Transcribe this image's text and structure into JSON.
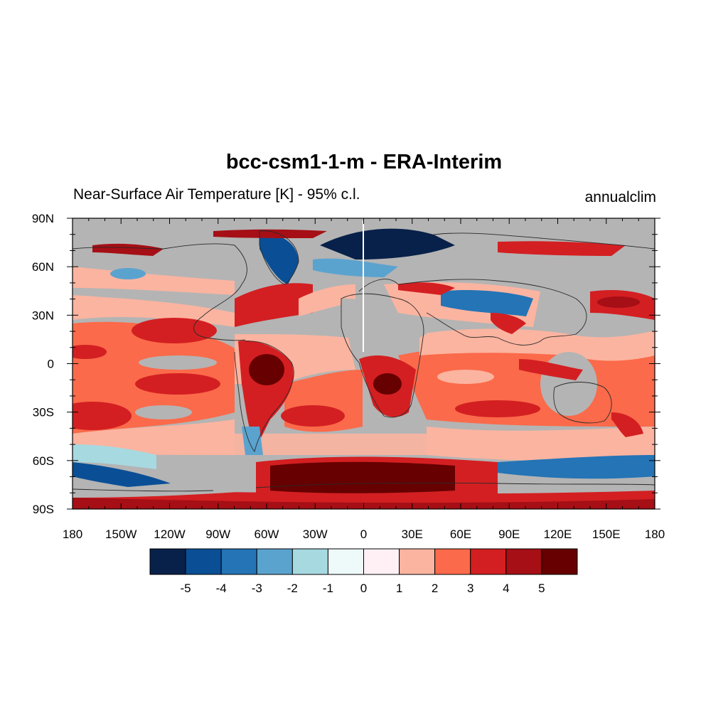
{
  "title": "bcc-csm1-1-m - ERA-Interim",
  "subtitle_left": "Near-Surface Air Temperature [K] - 95% c.l.",
  "subtitle_right": "annualclim",
  "map": {
    "projection": "cylindrical equidistant",
    "lon_range": [
      -180,
      180
    ],
    "lat_range": [
      -90,
      90
    ],
    "missing_color": "#b4b4b4",
    "lon_ticks": [
      {
        "lon": -180,
        "label": "180"
      },
      {
        "lon": -150,
        "label": "150W"
      },
      {
        "lon": -120,
        "label": "120W"
      },
      {
        "lon": -90,
        "label": "90W"
      },
      {
        "lon": -60,
        "label": "60W"
      },
      {
        "lon": -30,
        "label": "30W"
      },
      {
        "lon": 0,
        "label": "0"
      },
      {
        "lon": 30,
        "label": "30E"
      },
      {
        "lon": 60,
        "label": "60E"
      },
      {
        "lon": 90,
        "label": "90E"
      },
      {
        "lon": 120,
        "label": "120E"
      },
      {
        "lon": 150,
        "label": "150E"
      },
      {
        "lon": 180,
        "label": "180"
      }
    ],
    "lat_ticks": [
      {
        "lat": 90,
        "label": "90N"
      },
      {
        "lat": 60,
        "label": "60N"
      },
      {
        "lat": 30,
        "label": "30N"
      },
      {
        "lat": 0,
        "label": "0"
      },
      {
        "lat": -30,
        "label": "30S"
      },
      {
        "lat": -60,
        "label": "60S"
      },
      {
        "lat": -90,
        "label": "90S"
      }
    ]
  },
  "colorbar": {
    "colors": [
      "#08214a",
      "#0a4f96",
      "#2474b6",
      "#5ba3cf",
      "#a7d9e1",
      "#eefafa",
      "#fff0f5",
      "#fbb4a0",
      "#fb6a4a",
      "#d31f22",
      "#a50f15",
      "#670000"
    ],
    "labels": [
      "-5",
      "-4",
      "-3",
      "-2",
      "-1",
      "0",
      "1",
      "2",
      "3",
      "4",
      "5"
    ]
  }
}
